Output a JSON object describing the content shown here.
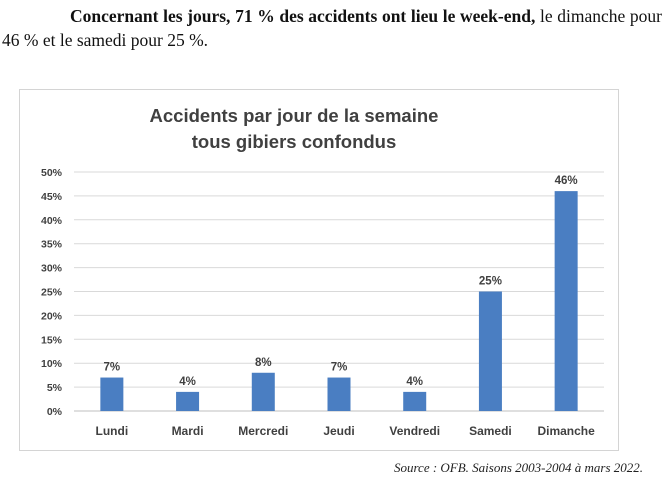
{
  "intro": {
    "bold_text": "Concernant les jours, 71 % des accidents ont lieu le week-end,",
    "normal_text": " le dimanche pour 46 % et le samedi pour 25 %."
  },
  "source": "Source : OFB. Saisons 2003-2004 à mars 2022.",
  "colors": {
    "bar": "#4a7ec2",
    "grid": "#d9d9d9",
    "axis_text": "#404040",
    "title": "#404040"
  },
  "chart_data": {
    "type": "bar",
    "title": [
      "Accidents par jour de la semaine",
      "tous gibiers confondus"
    ],
    "categories": [
      "Lundi",
      "Mardi",
      "Mercredi",
      "Jeudi",
      "Vendredi",
      "Samedi",
      "Dimanche"
    ],
    "values": [
      7,
      4,
      8,
      7,
      4,
      25,
      46
    ],
    "data_labels": [
      "7%",
      "4%",
      "8%",
      "7%",
      "4%",
      "25%",
      "46%"
    ],
    "yticks": [
      "0%",
      "5%",
      "10%",
      "15%",
      "20%",
      "25%",
      "30%",
      "35%",
      "40%",
      "45%",
      "50%"
    ],
    "ylim": [
      0,
      50
    ],
    "xlabel": "",
    "ylabel": "",
    "grid": true
  }
}
